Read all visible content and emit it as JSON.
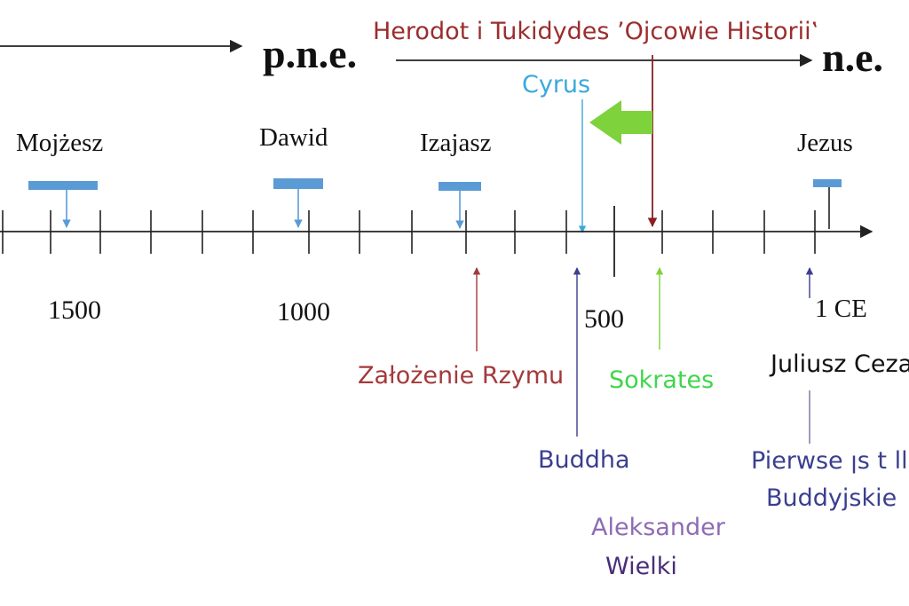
{
  "era_labels": {
    "bce": "p.n.e.",
    "ce": "n.e."
  },
  "header": {
    "historians": "Herodot i Tukidydes ’Ojcowie Historii‛"
  },
  "top_events": [
    {
      "label": "Mojżesz",
      "color": "#5b9bd5"
    },
    {
      "label": "Dawid",
      "color": "#5b9bd5"
    },
    {
      "label": "Izajasz",
      "color": "#5b9bd5"
    },
    {
      "label": "Jezus",
      "color": "#5b9bd5"
    }
  ],
  "cyrus": {
    "label": "Cyrus",
    "color": "#3aa9dc"
  },
  "year_labels": [
    "1500",
    "1000",
    "500",
    "1 CE"
  ],
  "bottom_events": {
    "rome": {
      "label": "Założenie  Rzymu",
      "color": "#a33a3a"
    },
    "socrates": {
      "label": "Sokrates",
      "color": "#3fd64a"
    },
    "buddha": {
      "label": "Buddha",
      "color": "#3b3f8f"
    },
    "caesar": {
      "label": "Juliusz Ceza",
      "color": "#111111"
    },
    "buddhist_texts": {
      "line1": "Pierwse ꞁs t ll tr",
      "line2": "Buddyjskie",
      "color": "#3b3f8f"
    },
    "alexander": {
      "line1": "Aleksander",
      "line2": "Wielki",
      "color1": "#8e6bb5",
      "color2": "#4a2d7a"
    }
  },
  "colors": {
    "axis": "#222222",
    "historians": "#9b2d2d",
    "marker_fill": "#5b9bd5",
    "green_arrow": "#7ed23b"
  }
}
